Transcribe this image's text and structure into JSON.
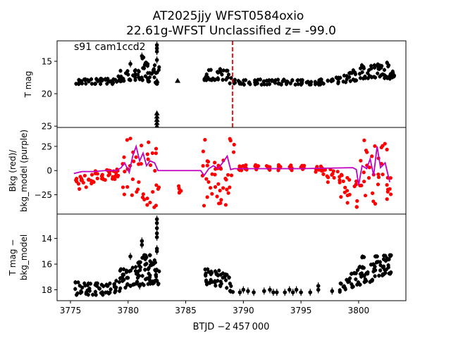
{
  "chart_data": {
    "type": "scatter",
    "title_line1": "AT2025jjy  WFST0584oxio",
    "title_line2": "22.61g-WFST Unclassified z= -99.0",
    "xlabel": "BTJD −2 457 000",
    "xlim": [
      3773.84,
      3804.1
    ],
    "x_ticks": [
      3775,
      3780,
      3785,
      3790,
      3795,
      3800
    ],
    "x_tick_labels": [
      "3775",
      "3780",
      "3785",
      "3790",
      "3795",
      "3800"
    ],
    "vline": {
      "x": 3789.06,
      "color": "#ff0000",
      "style": "dashed"
    },
    "panels": [
      {
        "name": "tmag",
        "ylabel": [
          "T mag"
        ],
        "ylim": [
          25.2,
          11.85
        ],
        "y_ticks": [
          15,
          20,
          25
        ],
        "y_tick_labels": [
          "15",
          "20",
          "25"
        ],
        "annotation": "s91 cam1ccd2",
        "point_color": "#000000",
        "bands": [
          [
            3775.4,
            17.7,
            18.5
          ],
          [
            3775.9,
            17.7,
            18.5
          ],
          [
            3776.4,
            17.7,
            18.5
          ],
          [
            3776.9,
            17.7,
            18.5
          ],
          [
            3777.4,
            17.7,
            18.5
          ],
          [
            3777.9,
            17.7,
            18.5
          ],
          [
            3778.4,
            17.6,
            18.5
          ],
          [
            3778.9,
            16.8,
            18.3
          ],
          [
            3779.3,
            16.2,
            18.1
          ],
          [
            3779.8,
            16.5,
            17.9
          ],
          [
            3780.3,
            16.3,
            17.9
          ],
          [
            3780.8,
            16.0,
            17.9
          ],
          [
            3781.2,
            14.4,
            18.0
          ],
          [
            3781.6,
            15.3,
            18.1
          ],
          [
            3782.0,
            15.6,
            18.3
          ],
          [
            3782.4,
            15.9,
            18.5
          ],
          [
            3786.5,
            16.3,
            17.9
          ],
          [
            3786.9,
            16.3,
            17.9
          ],
          [
            3787.4,
            16.5,
            17.9
          ],
          [
            3787.9,
            16.2,
            17.9
          ],
          [
            3788.4,
            16.4,
            18.0
          ],
          [
            3788.8,
            17.5,
            18.4
          ],
          [
            3789.4,
            17.9,
            18.6
          ],
          [
            3790.0,
            17.9,
            18.6
          ],
          [
            3790.6,
            17.9,
            18.6
          ],
          [
            3791.2,
            17.8,
            18.6
          ],
          [
            3791.8,
            17.9,
            18.6
          ],
          [
            3792.4,
            17.9,
            18.6
          ],
          [
            3793.0,
            17.8,
            18.6
          ],
          [
            3793.6,
            17.9,
            18.6
          ],
          [
            3794.2,
            17.9,
            18.6
          ],
          [
            3794.8,
            17.9,
            18.6
          ],
          [
            3795.4,
            17.8,
            18.6
          ],
          [
            3796.0,
            17.9,
            18.6
          ],
          [
            3796.6,
            17.8,
            18.6
          ],
          [
            3797.2,
            17.7,
            18.5
          ],
          [
            3797.8,
            17.5,
            18.4
          ],
          [
            3798.4,
            17.2,
            18.3
          ],
          [
            3799.0,
            16.8,
            18.2
          ],
          [
            3799.5,
            16.3,
            18.0
          ],
          [
            3800.0,
            15.6,
            17.8
          ],
          [
            3800.5,
            16.3,
            17.7
          ],
          [
            3801.0,
            15.6,
            17.5
          ],
          [
            3801.5,
            15.4,
            17.5
          ],
          [
            3802.0,
            15.2,
            17.6
          ],
          [
            3802.5,
            15.1,
            17.7
          ],
          [
            3802.8,
            16.5,
            17.5
          ]
        ],
        "extra_points": [
          [
            3782.5,
            12.5
          ],
          [
            3782.5,
            13.0
          ],
          [
            3782.5,
            13.5
          ],
          [
            3782.5,
            14.8
          ],
          [
            3780.2,
            15.4
          ],
          [
            3781.2,
            14.2
          ]
        ],
        "triangles": [
          [
            3782.5,
            23.0
          ],
          [
            3782.5,
            23.5
          ],
          [
            3782.5,
            24.0
          ],
          [
            3782.5,
            24.5
          ],
          [
            3782.5,
            25.0
          ],
          [
            3782.5,
            18.0
          ],
          [
            3784.3,
            18.0
          ]
        ]
      },
      {
        "name": "bkg",
        "ylabel": [
          "Bkg (red)/",
          "bkg_model (purple)"
        ],
        "ylim": [
          -45,
          44.6
        ],
        "y_ticks": [
          25,
          0,
          -25
        ],
        "y_tick_labels": [
          "25",
          "0",
          "−25"
        ],
        "point_color": "#ff0000",
        "model_color": "#c000c0",
        "bands": [
          [
            3775.4,
            -20,
            -5
          ],
          [
            3775.9,
            -18,
            -3
          ],
          [
            3776.4,
            -15,
            -1
          ],
          [
            3776.9,
            -13,
            0
          ],
          [
            3777.4,
            -12,
            1
          ],
          [
            3777.9,
            -10,
            2
          ],
          [
            3778.4,
            -9,
            2
          ],
          [
            3778.9,
            -8,
            3
          ],
          [
            3779.4,
            -38,
            38
          ],
          [
            3779.9,
            -38,
            38
          ],
          [
            3780.4,
            -25,
            25
          ],
          [
            3780.9,
            -38,
            38
          ],
          [
            3781.4,
            -38,
            38
          ],
          [
            3781.9,
            -38,
            38
          ],
          [
            3782.4,
            -38,
            38
          ],
          [
            3784.3,
            -25,
            -15
          ],
          [
            3786.4,
            -40,
            40
          ],
          [
            3786.8,
            -30,
            30
          ],
          [
            3787.2,
            -30,
            10
          ],
          [
            3787.6,
            -35,
            15
          ],
          [
            3788.0,
            -40,
            15
          ],
          [
            3788.4,
            -40,
            20
          ],
          [
            3788.8,
            -20,
            40
          ],
          [
            3789.2,
            0,
            5
          ],
          [
            3790,
            0,
            6
          ],
          [
            3791,
            0,
            6
          ],
          [
            3792,
            0,
            6
          ],
          [
            3793,
            0,
            6
          ],
          [
            3794,
            0,
            6
          ],
          [
            3795,
            0,
            6
          ],
          [
            3796,
            -2,
            6
          ],
          [
            3796.6,
            -6,
            5
          ],
          [
            3797.2,
            -12,
            5
          ],
          [
            3797.8,
            -20,
            3
          ],
          [
            3798.4,
            -30,
            0
          ],
          [
            3799.0,
            -38,
            -5
          ],
          [
            3799.5,
            -40,
            -10
          ],
          [
            3800.0,
            -30,
            35
          ],
          [
            3800.5,
            -35,
            40
          ],
          [
            3801.0,
            -38,
            35
          ],
          [
            3801.5,
            -38,
            40
          ],
          [
            3802.0,
            -35,
            35
          ],
          [
            3802.5,
            -38,
            20
          ]
        ],
        "model": [
          [
            3775.3,
            -3
          ],
          [
            3776,
            -1
          ],
          [
            3777,
            -1
          ],
          [
            3778,
            0
          ],
          [
            3779,
            0
          ],
          [
            3779.4,
            3
          ],
          [
            3779.7,
            8
          ],
          [
            3780.1,
            -2
          ],
          [
            3780.4,
            15
          ],
          [
            3780.7,
            25
          ],
          [
            3781.0,
            10
          ],
          [
            3781.3,
            18
          ],
          [
            3781.6,
            5
          ],
          [
            3781.9,
            10
          ],
          [
            3782.3,
            8
          ],
          [
            3782.6,
            0
          ],
          [
            3786.3,
            0
          ],
          [
            3786.6,
            -5
          ],
          [
            3787.0,
            2
          ],
          [
            3787.4,
            5
          ],
          [
            3787.8,
            2
          ],
          [
            3788.2,
            8
          ],
          [
            3788.6,
            15
          ],
          [
            3788.9,
            1
          ],
          [
            3789.2,
            2
          ],
          [
            3795,
            2
          ],
          [
            3799.5,
            3
          ],
          [
            3799.8,
            1
          ],
          [
            3800.0,
            -15
          ],
          [
            3800.3,
            5
          ],
          [
            3800.7,
            2
          ],
          [
            3801.0,
            12
          ],
          [
            3801.3,
            -5
          ],
          [
            3801.6,
            25
          ],
          [
            3801.9,
            3
          ],
          [
            3802.3,
            8
          ],
          [
            3802.7,
            -12
          ]
        ]
      },
      {
        "name": "diff",
        "ylabel": [
          "T mag −",
          "bkg_model"
        ],
        "ylim": [
          18.85,
          12.1
        ],
        "y_ticks": [
          14,
          16,
          18
        ],
        "y_tick_labels": [
          "14",
          "16",
          "18"
        ],
        "point_color": "#000000",
        "bands": [
          [
            3775.4,
            17.4,
            18.4
          ],
          [
            3775.9,
            17.5,
            18.4
          ],
          [
            3776.4,
            17.5,
            18.4
          ],
          [
            3776.9,
            17.5,
            18.4
          ],
          [
            3777.4,
            17.6,
            18.4
          ],
          [
            3777.9,
            17.6,
            18.3
          ],
          [
            3778.4,
            17.5,
            18.3
          ],
          [
            3778.9,
            17.3,
            18.2
          ],
          [
            3779.3,
            16.4,
            17.9
          ],
          [
            3779.8,
            16.5,
            17.7
          ],
          [
            3780.3,
            16.2,
            17.6
          ],
          [
            3780.8,
            15.8,
            17.6
          ],
          [
            3781.2,
            15.3,
            17.7
          ],
          [
            3781.6,
            15.3,
            17.6
          ],
          [
            3782.0,
            15.7,
            17.6
          ],
          [
            3782.4,
            16.2,
            17.7
          ],
          [
            3786.5,
            16.4,
            17.6
          ],
          [
            3786.9,
            16.4,
            17.5
          ],
          [
            3787.4,
            16.5,
            17.7
          ],
          [
            3787.9,
            16.7,
            17.8
          ],
          [
            3788.4,
            16.8,
            17.9
          ],
          [
            3788.8,
            17.5,
            18.2
          ],
          [
            3798.3,
            17.5,
            18.2
          ],
          [
            3798.8,
            17.1,
            18.0
          ],
          [
            3799.3,
            16.7,
            17.8
          ],
          [
            3799.8,
            16.2,
            17.6
          ],
          [
            3800.2,
            15.4,
            17.4
          ],
          [
            3800.6,
            16.6,
            17.4
          ],
          [
            3801.0,
            16.0,
            17.3
          ],
          [
            3801.4,
            15.4,
            17.0
          ],
          [
            3801.8,
            15.3,
            16.9
          ],
          [
            3802.2,
            15.3,
            16.7
          ],
          [
            3802.6,
            15.3,
            16.8
          ]
        ],
        "extra_points": [
          [
            3782.5,
            12.5
          ],
          [
            3782.5,
            12.8
          ],
          [
            3782.5,
            13.2
          ],
          [
            3782.5,
            13.6
          ],
          [
            3782.5,
            13.9
          ],
          [
            3782.5,
            14.8
          ],
          [
            3782.5,
            15.0
          ],
          [
            3782.5,
            17.3
          ],
          [
            3780.2,
            15.4
          ],
          [
            3781.2,
            14.2
          ],
          [
            3781.2,
            14.5
          ],
          [
            3781.0,
            17.7
          ],
          [
            3789.7,
            18.2
          ],
          [
            3790.0,
            18.0
          ],
          [
            3790.4,
            18.1
          ],
          [
            3790.9,
            18.2
          ],
          [
            3791.8,
            18.1
          ],
          [
            3792.3,
            18.0
          ],
          [
            3792.6,
            18.2
          ],
          [
            3792.9,
            18.2
          ],
          [
            3793.6,
            18.2
          ],
          [
            3794.0,
            18.0
          ],
          [
            3794.3,
            18.2
          ],
          [
            3794.6,
            18.0
          ],
          [
            3795.0,
            18.2
          ],
          [
            3795.8,
            18.2
          ],
          [
            3796.5,
            17.7
          ],
          [
            3796.5,
            18.0
          ],
          [
            3797.7,
            18.1
          ]
        ]
      }
    ]
  }
}
